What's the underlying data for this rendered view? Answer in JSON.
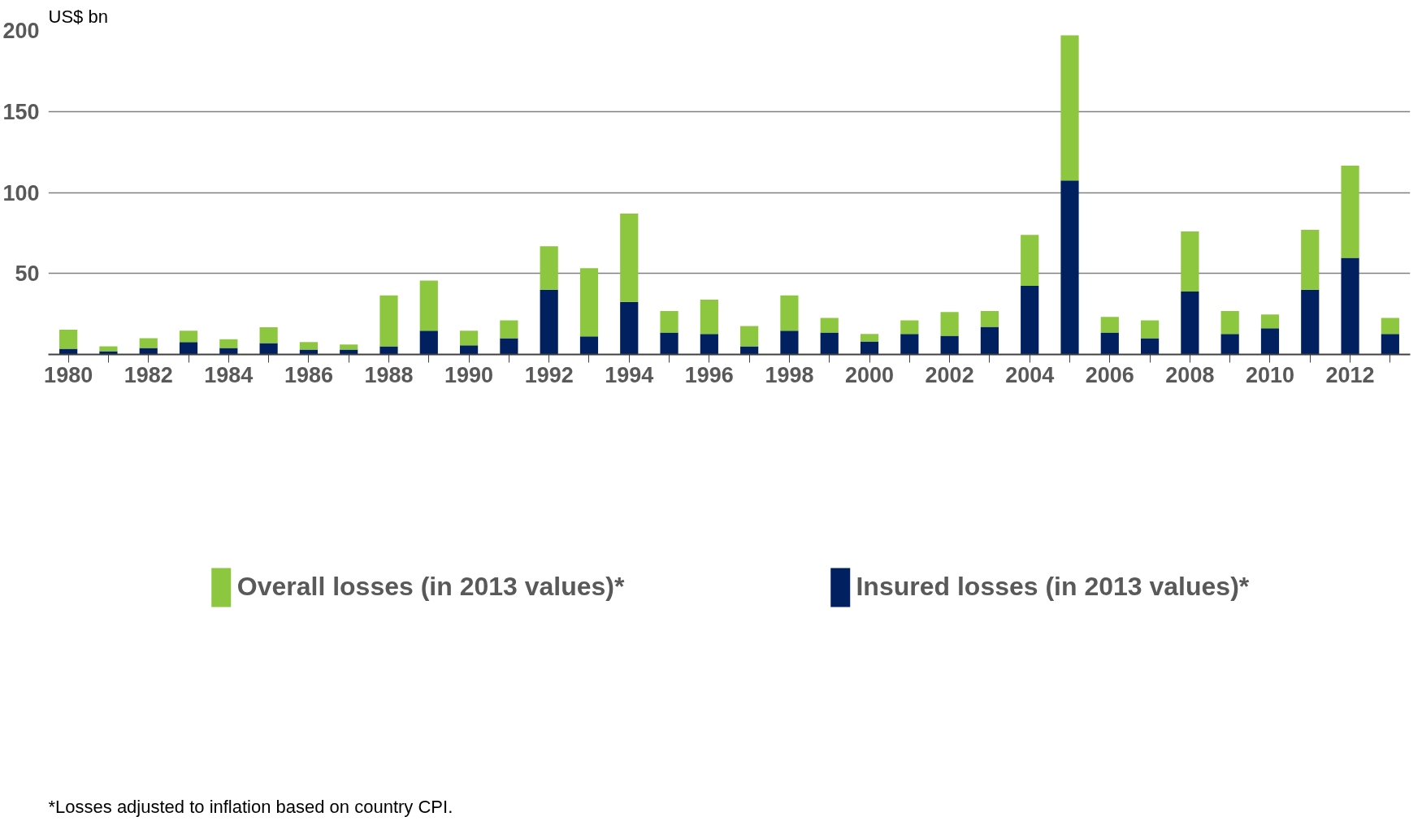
{
  "chart_data": {
    "type": "bar",
    "stacked": true,
    "ylabel": "US$ bn",
    "categories": [
      "1980",
      null,
      "1982",
      null,
      "1984",
      null,
      "1986",
      null,
      "1988",
      null,
      "1990",
      null,
      "1992",
      null,
      "1994",
      null,
      "1996",
      null,
      "1998",
      null,
      "2000",
      null,
      "2002",
      null,
      "2004",
      null,
      "2006",
      null,
      "2008",
      null,
      "2010",
      null,
      "2012",
      null
    ],
    "series": [
      {
        "name": "Insured losses (in 2013 values)*",
        "color": "#002060",
        "values": [
          3.5,
          2,
          4,
          7.6,
          4,
          7,
          3,
          3,
          5,
          14.7,
          5.6,
          10,
          40,
          11.2,
          32.4,
          13.5,
          12.6,
          5,
          14.7,
          13.5,
          8,
          12.6,
          11.5,
          17,
          42.4,
          107.4,
          13.5,
          10,
          38.8,
          12.6,
          16.2,
          40,
          59.7,
          12.6
        ]
      },
      {
        "name": "Overall losses (in 2013 values)*",
        "color": "#8dc63f",
        "values": [
          11.8,
          3,
          6,
          7.1,
          5.4,
          9.8,
          4.6,
          3.2,
          31.5,
          30.9,
          9.1,
          11,
          26.8,
          42,
          54.6,
          13.3,
          21.2,
          12.6,
          21.8,
          9.1,
          4.6,
          8.4,
          14.7,
          9.8,
          31.4,
          89.6,
          9.7,
          11,
          37.1,
          14.2,
          8.5,
          37,
          56.8,
          10
        ]
      }
    ],
    "ylim": [
      0,
      200
    ],
    "yticks": [
      {
        "value": 0,
        "label": null
      },
      50,
      100,
      150,
      200
    ],
    "grid": "y",
    "legend": "bottom",
    "annotations": [
      "*Losses adjusted to inflation based on country CPI."
    ]
  }
}
